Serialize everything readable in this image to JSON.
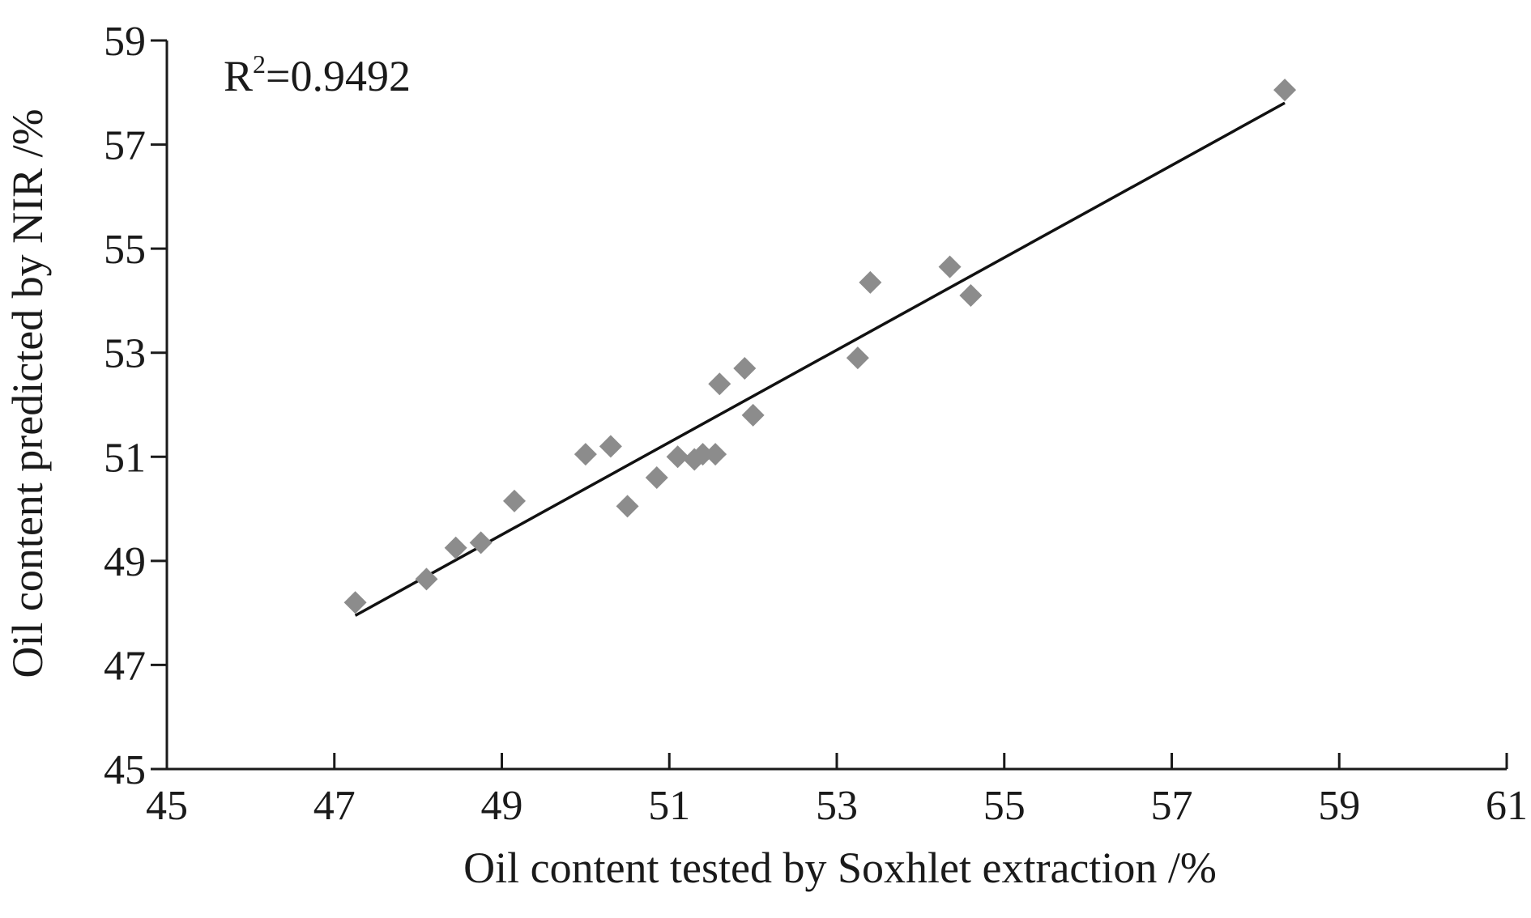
{
  "chart_data": {
    "type": "scatter",
    "xlabel": "Oil content tested by Soxhlet extraction /%",
    "ylabel": "Oil content predicted by NIR /%",
    "xlim": [
      45,
      61
    ],
    "ylim": [
      45,
      59
    ],
    "xticks": [
      45,
      47,
      49,
      51,
      53,
      55,
      57,
      59,
      61
    ],
    "yticks": [
      45,
      47,
      49,
      51,
      53,
      55,
      57,
      59
    ],
    "grid": false,
    "legend": "none",
    "annotation": {
      "base": "R",
      "sup": "2",
      "rest": "=0.9492",
      "position": "top-left"
    },
    "marker_color": "#8c8c8c",
    "line_color": "#111111",
    "points": [
      {
        "x": 47.25,
        "y": 48.2
      },
      {
        "x": 48.1,
        "y": 48.65
      },
      {
        "x": 48.45,
        "y": 49.25
      },
      {
        "x": 48.75,
        "y": 49.35
      },
      {
        "x": 49.15,
        "y": 50.15
      },
      {
        "x": 50.0,
        "y": 51.05
      },
      {
        "x": 50.3,
        "y": 51.2
      },
      {
        "x": 50.5,
        "y": 50.05
      },
      {
        "x": 50.85,
        "y": 50.6
      },
      {
        "x": 51.1,
        "y": 51.0
      },
      {
        "x": 51.3,
        "y": 50.95
      },
      {
        "x": 51.4,
        "y": 51.05
      },
      {
        "x": 51.55,
        "y": 51.05
      },
      {
        "x": 51.6,
        "y": 52.4
      },
      {
        "x": 51.9,
        "y": 52.7
      },
      {
        "x": 52.0,
        "y": 51.8
      },
      {
        "x": 53.25,
        "y": 52.9
      },
      {
        "x": 53.4,
        "y": 54.35
      },
      {
        "x": 54.35,
        "y": 54.65
      },
      {
        "x": 54.6,
        "y": 54.1
      },
      {
        "x": 58.35,
        "y": 58.05
      }
    ],
    "trendline": {
      "x": [
        47.25,
        58.35
      ],
      "y": [
        47.95,
        57.8
      ]
    }
  }
}
